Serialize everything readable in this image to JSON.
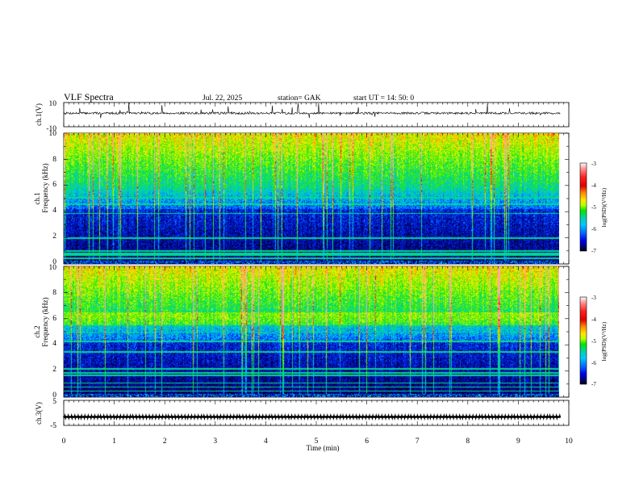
{
  "header": {
    "title": "VLF  Spectra",
    "date": "Jul.  22,  2025",
    "station": "station= GAK",
    "start_ut": "start  UT  =   14: 50: 0"
  },
  "chart_data": [
    {
      "id": "ch1-waveform",
      "type": "line",
      "ylabel": "ch.1(V)",
      "ylim": [
        -10,
        10
      ],
      "y_ticks": [
        "10",
        "-10"
      ],
      "xlim": [
        0,
        9.83
      ]
    },
    {
      "id": "ch1-spectrogram",
      "type": "heatmap",
      "ylabel_top": "ch.1",
      "ylabel": "Frequency  (kHz)",
      "ylim": [
        0,
        10
      ],
      "y_ticks": [
        "0",
        "2",
        "4",
        "6",
        "8",
        "10"
      ],
      "xlim": [
        0,
        9.83
      ],
      "colorbar": {
        "label": "log(PSD)(V²/Hz)",
        "range": [
          -7,
          -3
        ],
        "ticks": [
          "-3",
          "-4",
          "-5",
          "-6",
          "-7"
        ]
      }
    },
    {
      "id": "ch2-spectrogram",
      "type": "heatmap",
      "ylabel_top": "ch.2",
      "ylabel": "Frequency  (kHz)",
      "ylim": [
        0,
        10
      ],
      "y_ticks": [
        "0",
        "2",
        "4",
        "6",
        "8",
        "10"
      ],
      "xlim": [
        0,
        9.83
      ],
      "colorbar": {
        "label": "log(PSD)(V²/Hz)",
        "range": [
          -7,
          -3
        ],
        "ticks": [
          "-3",
          "-4",
          "-5",
          "-6",
          "-7"
        ]
      }
    },
    {
      "id": "ch3-waveform",
      "type": "line",
      "ylabel": "ch.3(V)",
      "ylim": [
        -5,
        5
      ],
      "y_ticks": [
        "5",
        "-5"
      ],
      "xlim": [
        0,
        9.83
      ]
    }
  ],
  "x_axis": {
    "label": "Time  (min)",
    "range": [
      0,
      10
    ],
    "ticks": [
      "0",
      "1",
      "2",
      "3",
      "4",
      "5",
      "6",
      "7",
      "8",
      "9",
      "10"
    ]
  }
}
